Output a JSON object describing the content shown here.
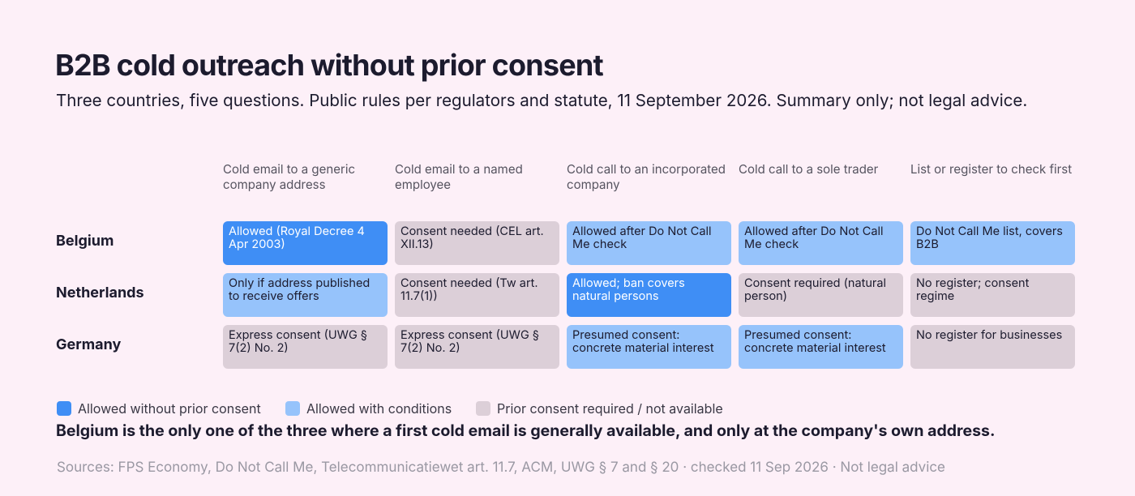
{
  "header": {
    "title": "B2B cold outreach without prior consent",
    "subtitle": "Three countries, five questions. Public rules per regulators and statute, 11 September 2026. Summary only; not legal advice."
  },
  "table": {
    "columns": [
      "Cold email to a generic company address",
      "Cold email to a named employee",
      "Cold call to an incorporated company",
      "Cold call to a sole trader",
      "List or register to check first"
    ],
    "rows": [
      {
        "label": "Belgium",
        "cells": [
          {
            "text": "Allowed (Royal Decree 4 Apr 2003)",
            "color": "#3f8ef5"
          },
          {
            "text": "Consent needed (CEL art. XII.13)",
            "color": "#dccfd8"
          },
          {
            "text": "Allowed after Do Not Call Me check",
            "color": "#96c3fb"
          },
          {
            "text": "Allowed after Do Not Call Me check",
            "color": "#96c3fb"
          },
          {
            "text": "Do Not Call Me list, covers B2B",
            "color": "#96c3fb"
          }
        ]
      },
      {
        "label": "Netherlands",
        "cells": [
          {
            "text": "Only if address published to receive offers",
            "color": "#96c3fb"
          },
          {
            "text": "Consent needed (Tw art. 11.7(1))",
            "color": "#dccfd8"
          },
          {
            "text": "Allowed; ban covers natural persons",
            "color": "#3f8ef5"
          },
          {
            "text": "Consent required (natural person)",
            "color": "#dccfd8"
          },
          {
            "text": "No register; consent regime",
            "color": "#dccfd8"
          }
        ]
      },
      {
        "label": "Germany",
        "cells": [
          {
            "text": "Express consent (UWG § 7(2) No. 2)",
            "color": "#dccfd8"
          },
          {
            "text": "Express consent (UWG § 7(2) No. 2)",
            "color": "#dccfd8"
          },
          {
            "text": "Presumed consent: concrete material interest",
            "color": "#96c3fb"
          },
          {
            "text": "Presumed consent: concrete material interest",
            "color": "#96c3fb"
          },
          {
            "text": "No register for businesses",
            "color": "#dccfd8"
          }
        ]
      }
    ]
  },
  "legend": {
    "items": [
      {
        "label": "Allowed without prior consent",
        "color": "#3f8ef5"
      },
      {
        "label": "Allowed with conditions",
        "color": "#96c3fb"
      },
      {
        "label": "Prior consent required / not available",
        "color": "#dccfd8"
      }
    ]
  },
  "takeaway": "Belgium is the only one of the three where a first cold email is generally available, and only at the company's own address.",
  "sources": "Sources: FPS Economy, Do Not Call Me, Telecommunicatiewet art. 11.7, ACM, UWG § 7 and § 20 · checked 11 Sep 2026 · Not legal advice"
}
